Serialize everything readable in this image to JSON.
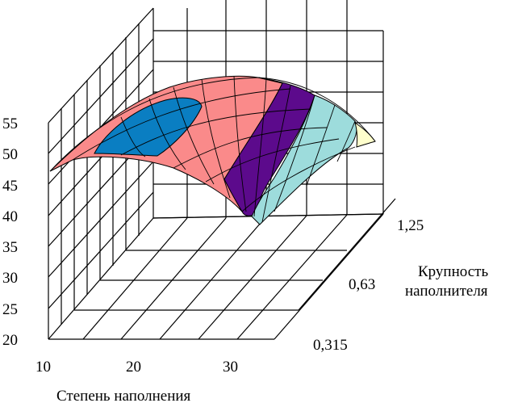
{
  "chart_data": {
    "type": "surface",
    "title": "",
    "xlabel": "Степень наполнения",
    "ylabel": [
      "Крупность",
      "наполнителя"
    ],
    "zlabel": "",
    "x_ticks": [
      "10",
      "20",
      "30"
    ],
    "y_ticks": [
      "0,315",
      "0,63",
      "1,25"
    ],
    "z_ticks": [
      "20",
      "25",
      "30",
      "35",
      "40",
      "45",
      "50",
      "55"
    ],
    "zlim": [
      20,
      55
    ],
    "grid": true,
    "bands": [
      {
        "range": [
          45,
          50
        ],
        "color": "#FA8A8A"
      },
      {
        "range": [
          50,
          55
        ],
        "color": "#0A7EC2"
      },
      {
        "range": [
          40,
          45
        ],
        "color": "#5C0A8C"
      },
      {
        "range": [
          35,
          40
        ],
        "color": "#9DDCDC"
      },
      {
        "range": [
          30,
          35
        ],
        "color": "#FFFFCC"
      }
    ]
  }
}
